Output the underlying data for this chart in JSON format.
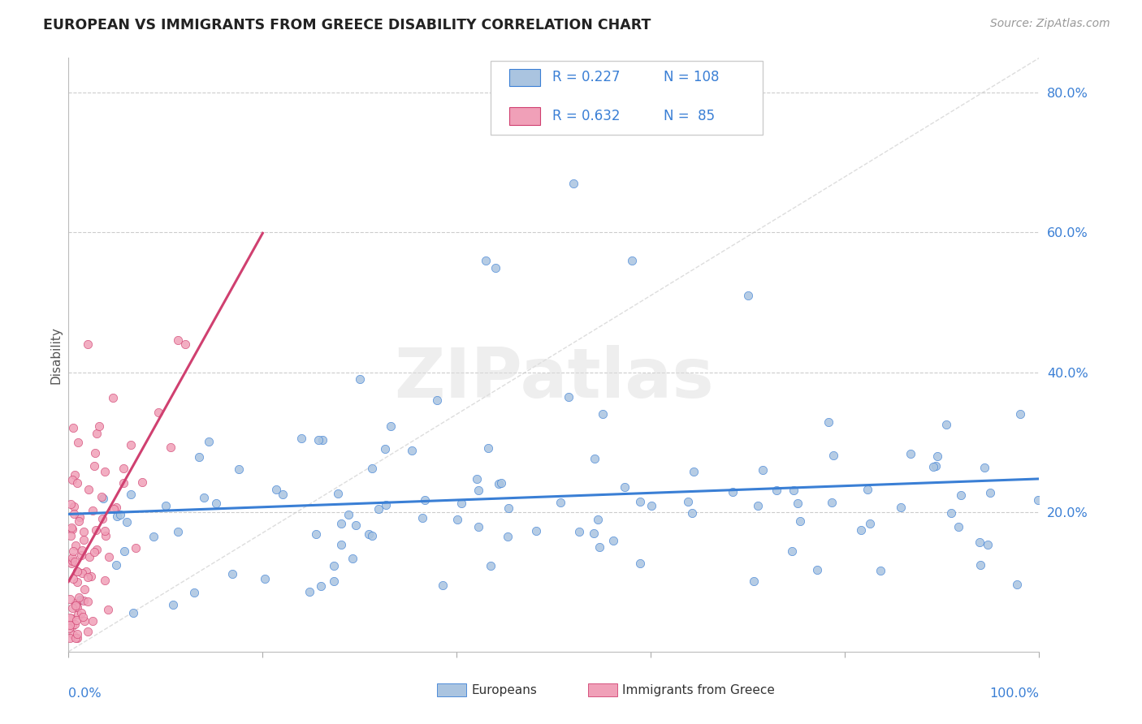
{
  "title": "EUROPEAN VS IMMIGRANTS FROM GREECE DISABILITY CORRELATION CHART",
  "source": "Source: ZipAtlas.com",
  "ylabel": "Disability",
  "xlim": [
    0.0,
    1.0
  ],
  "ylim": [
    0.0,
    0.85
  ],
  "yticks": [
    0.2,
    0.4,
    0.6,
    0.8
  ],
  "ytick_labels": [
    "20.0%",
    "40.0%",
    "60.0%",
    "80.0%"
  ],
  "europeans_color": "#aac4e0",
  "immigrants_color": "#f0a0b8",
  "regression_europeans_color": "#3a7fd5",
  "regression_immigrants_color": "#d04070",
  "watermark": "ZIPatlas",
  "legend_R_europeans": "R = 0.227",
  "legend_N_europeans": "N = 108",
  "legend_R_immigrants": "R = 0.632",
  "legend_N_immigrants": "N =  85",
  "seed": 77
}
